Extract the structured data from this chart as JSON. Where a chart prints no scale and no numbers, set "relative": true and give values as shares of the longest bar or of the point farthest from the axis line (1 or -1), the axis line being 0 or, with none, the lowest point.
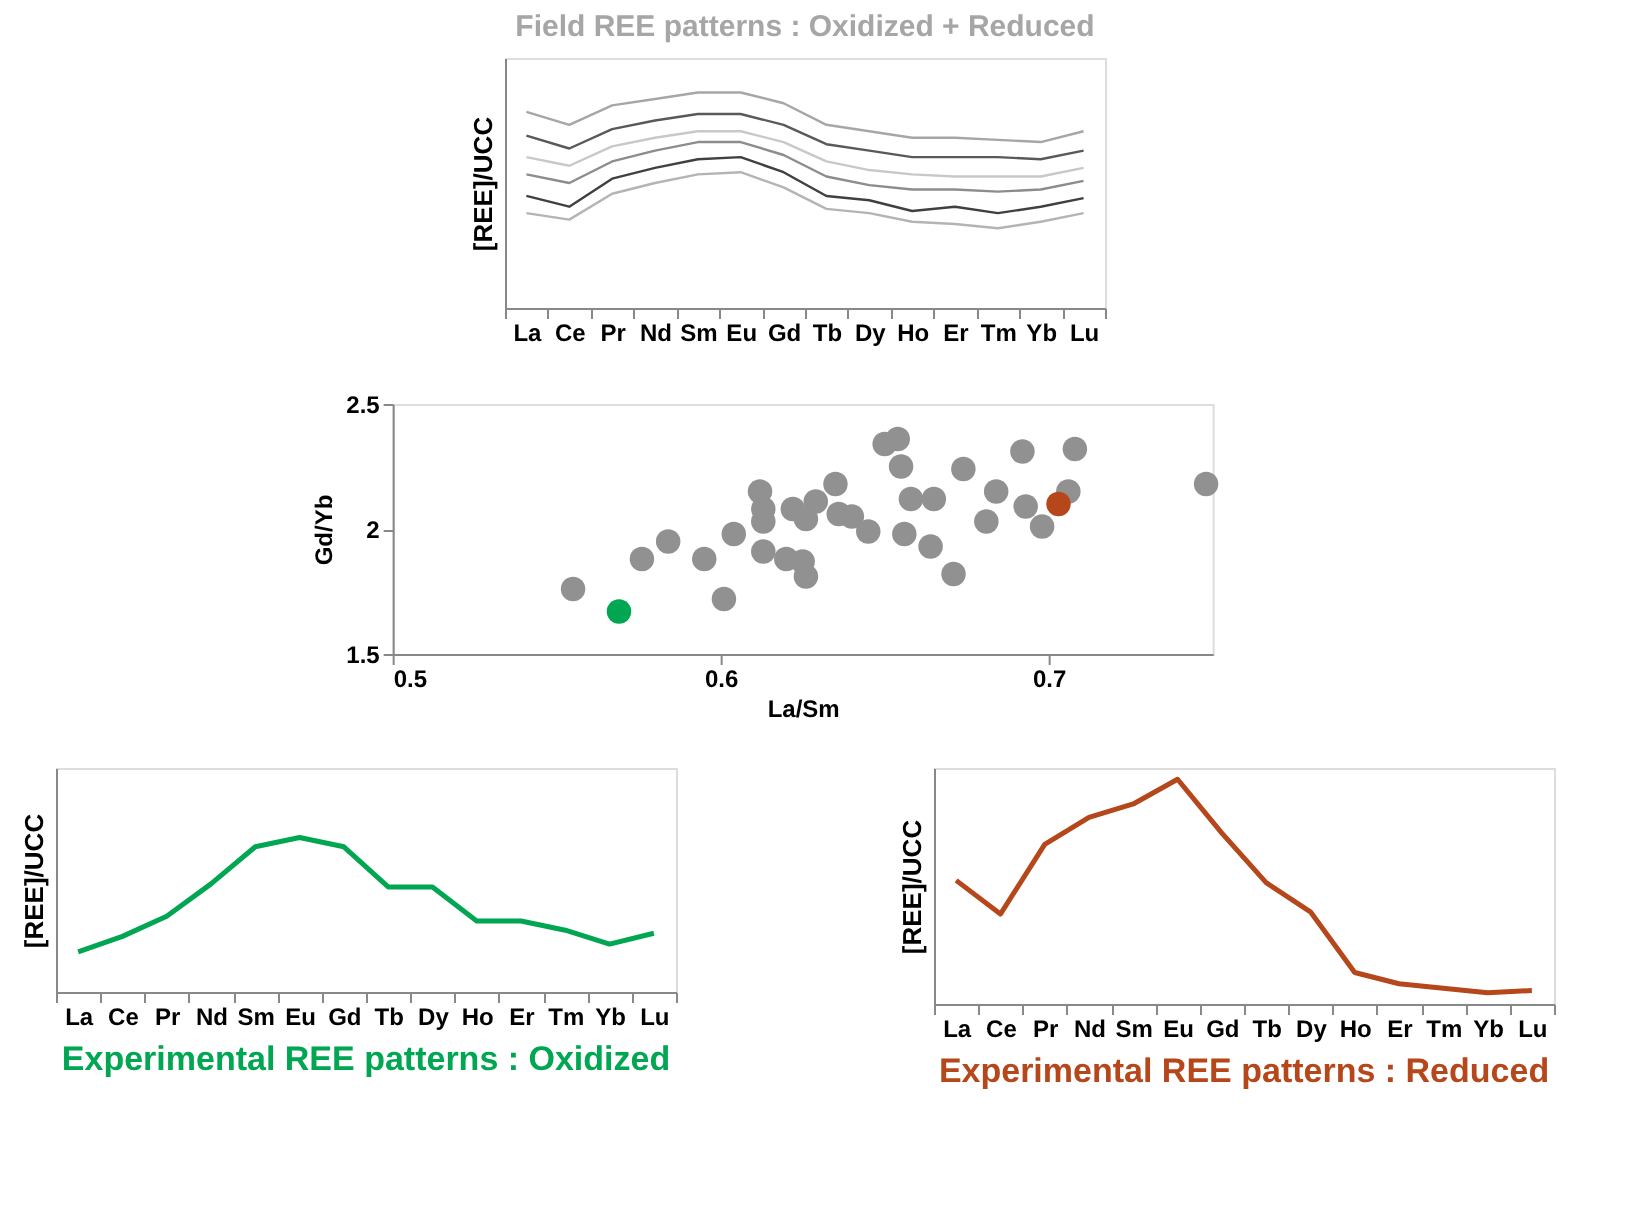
{
  "chart_data": [
    {
      "type": "line",
      "title": "Field REE patterns : Oxidized + Reduced",
      "ylabel": "[REE]/UCC",
      "relative": true,
      "categories": [
        "La",
        "Ce",
        "Pr",
        "Nd",
        "Sm",
        "Eu",
        "Gd",
        "Tb",
        "Dy",
        "Ho",
        "Er",
        "Tm",
        "Yb",
        "Lu"
      ],
      "series": [
        {
          "color": "#a6a6a6",
          "values": [
            0.91,
            0.85,
            0.94,
            0.97,
            1,
            1,
            0.95,
            0.85,
            0.82,
            0.79,
            0.79,
            0.78,
            0.77,
            0.82
          ]
        },
        {
          "color": "#595959",
          "values": [
            0.8,
            0.74,
            0.83,
            0.87,
            0.9,
            0.9,
            0.85,
            0.76,
            0.73,
            0.7,
            0.7,
            0.7,
            0.69,
            0.73
          ]
        },
        {
          "color": "#c8c8c8",
          "values": [
            0.7,
            0.66,
            0.75,
            0.79,
            0.82,
            0.82,
            0.77,
            0.68,
            0.64,
            0.62,
            0.61,
            0.61,
            0.61,
            0.65
          ]
        },
        {
          "color": "#8c8c8c",
          "values": [
            0.62,
            0.58,
            0.68,
            0.73,
            0.77,
            0.77,
            0.71,
            0.61,
            0.57,
            0.55,
            0.55,
            0.54,
            0.55,
            0.59
          ]
        },
        {
          "color": "#404040",
          "values": [
            0.52,
            0.47,
            0.6,
            0.65,
            0.69,
            0.7,
            0.63,
            0.52,
            0.5,
            0.45,
            0.47,
            0.44,
            0.47,
            0.51
          ]
        },
        {
          "color": "#b4b4b4",
          "values": [
            0.44,
            0.41,
            0.53,
            0.58,
            0.62,
            0.63,
            0.56,
            0.46,
            0.44,
            0.4,
            0.39,
            0.37,
            0.4,
            0.44
          ]
        }
      ]
    },
    {
      "type": "scatter",
      "xlabel": "La/Sm",
      "ylabel": "Gd/Yb",
      "xlim": [
        0.5,
        0.75
      ],
      "ylim": [
        1.5,
        2.5
      ],
      "xticks": [
        0.5,
        0.6,
        0.7
      ],
      "yticks": [
        1.5,
        2,
        2.5
      ],
      "series": [
        {
          "color": "#919191",
          "x": [
            0.555,
            0.576,
            0.584,
            0.595,
            0.601,
            0.604,
            0.612,
            0.613,
            0.613,
            0.613,
            0.62,
            0.625,
            0.626,
            0.622,
            0.626,
            0.629,
            0.635,
            0.636,
            0.64,
            0.645,
            0.65,
            0.654,
            0.655,
            0.658,
            0.656,
            0.664,
            0.665,
            0.671,
            0.674,
            0.684,
            0.681,
            0.692,
            0.693,
            0.698,
            0.706,
            0.708,
            0.748
          ],
          "values": [
            1.76,
            1.88,
            1.95,
            1.88,
            1.72,
            1.98,
            2.15,
            2.08,
            2.03,
            1.91,
            1.88,
            1.87,
            1.81,
            2.08,
            2.04,
            2.11,
            2.18,
            2.06,
            2.05,
            1.99,
            2.34,
            2.36,
            2.25,
            2.12,
            1.98,
            1.93,
            2.12,
            1.82,
            2.24,
            2.15,
            2.03,
            2.31,
            2.09,
            2.01,
            2.15,
            2.32,
            2.18
          ]
        },
        {
          "color": "#00a651",
          "x": [
            0.569
          ],
          "values": [
            1.67
          ]
        },
        {
          "color": "#b5471b",
          "x": [
            0.703
          ],
          "values": [
            2.1
          ]
        }
      ]
    },
    {
      "type": "line",
      "title": "Experimental  REE patterns : Oxidized",
      "ylabel": "[REE]/UCC",
      "relative": true,
      "categories": [
        "La",
        "Ce",
        "Pr",
        "Nd",
        "Sm",
        "Eu",
        "Gd",
        "Tb",
        "Dy",
        "Ho",
        "Er",
        "Tm",
        "Yb",
        "Lu"
      ],
      "series": [
        {
          "color": "#00a651",
          "values": [
            0.26,
            0.36,
            0.49,
            0.7,
            0.94,
            1,
            0.94,
            0.68,
            0.68,
            0.46,
            0.46,
            0.4,
            0.31,
            0.38
          ]
        }
      ]
    },
    {
      "type": "line",
      "title": "Experimental  REE patterns : Reduced",
      "ylabel": "[REE]/UCC",
      "relative": true,
      "categories": [
        "La",
        "Ce",
        "Pr",
        "Nd",
        "Sm",
        "Eu",
        "Gd",
        "Tb",
        "Dy",
        "Ho",
        "Er",
        "Tm",
        "Yb",
        "Lu"
      ],
      "series": [
        {
          "color": "#b5471b",
          "values": [
            0.55,
            0.4,
            0.71,
            0.83,
            0.89,
            1,
            0.76,
            0.54,
            0.41,
            0.14,
            0.09,
            0.07,
            0.05,
            0.06
          ]
        }
      ]
    }
  ]
}
